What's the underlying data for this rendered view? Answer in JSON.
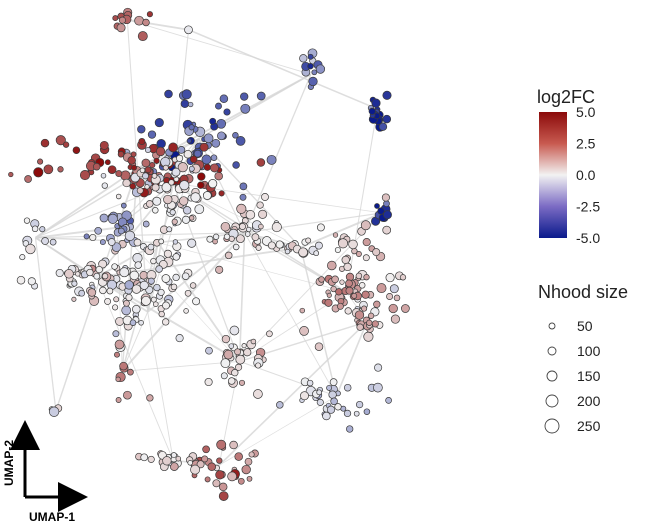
{
  "chart_data": {
    "type": "scatter",
    "title": "",
    "xlabel": "UMAP-1",
    "ylabel": "UMAP-2",
    "color_legend": {
      "title": "log2FC",
      "ticks": [
        "5.0",
        "2.5",
        "0.0",
        "-2.5",
        "-5.0"
      ],
      "range": [
        -5.0,
        5.0
      ],
      "colors": {
        "low": "#0a1a8c",
        "mid": "#f2f2f2",
        "high": "#8b0a0a"
      }
    },
    "size_legend": {
      "title": "Nhood size",
      "values": [
        50,
        100,
        150,
        200,
        250
      ]
    },
    "grid": false,
    "clusters": [
      {
        "x": 0.23,
        "y": 0.97,
        "n": 14,
        "spread": [
          0.02,
          0.012
        ],
        "log2fc": 3.0
      },
      {
        "x": 0.35,
        "y": 0.95,
        "n": 1,
        "spread": [
          0.0,
          0.0
        ],
        "log2fc": 0.0
      },
      {
        "x": 0.59,
        "y": 0.86,
        "n": 12,
        "spread": [
          0.01,
          0.02
        ],
        "log2fc": -3.0
      },
      {
        "x": 0.72,
        "y": 0.79,
        "n": 18,
        "spread": [
          0.01,
          0.015
        ],
        "log2fc": -4.8
      },
      {
        "x": 0.73,
        "y": 0.58,
        "n": 10,
        "spread": [
          0.008,
          0.012
        ],
        "log2fc": -4.5
      },
      {
        "x": 0.37,
        "y": 0.73,
        "n": 60,
        "spread": [
          0.05,
          0.05
        ],
        "log2fc": -3.0
      },
      {
        "x": 0.25,
        "y": 0.67,
        "n": 90,
        "spread": [
          0.08,
          0.03
        ],
        "log2fc": 4.0
      },
      {
        "x": 0.32,
        "y": 0.64,
        "n": 50,
        "spread": [
          0.04,
          0.04
        ],
        "log2fc": 0.0
      },
      {
        "x": 0.21,
        "y": 0.55,
        "n": 25,
        "spread": [
          0.025,
          0.02
        ],
        "log2fc": -2.0
      },
      {
        "x": 0.05,
        "y": 0.53,
        "n": 10,
        "spread": [
          0.02,
          0.015
        ],
        "log2fc": 0.0
      },
      {
        "x": 0.17,
        "y": 0.45,
        "n": 60,
        "spread": [
          0.06,
          0.02
        ],
        "log2fc": 0.3
      },
      {
        "x": 0.29,
        "y": 0.52,
        "n": 60,
        "spread": [
          0.05,
          0.06
        ],
        "log2fc": 0.0
      },
      {
        "x": 0.27,
        "y": 0.38,
        "n": 45,
        "spread": [
          0.035,
          0.035
        ],
        "log2fc": 0.0
      },
      {
        "x": 0.46,
        "y": 0.54,
        "n": 40,
        "spread": [
          0.05,
          0.025
        ],
        "log2fc": 0.4
      },
      {
        "x": 0.57,
        "y": 0.51,
        "n": 15,
        "spread": [
          0.03,
          0.01
        ],
        "log2fc": 0.0
      },
      {
        "x": 0.69,
        "y": 0.45,
        "n": 55,
        "spread": [
          0.04,
          0.06
        ],
        "log2fc": 0.8
      },
      {
        "x": 0.66,
        "y": 0.42,
        "n": 30,
        "spread": [
          0.035,
          0.018
        ],
        "log2fc": 1.8
      },
      {
        "x": 0.7,
        "y": 0.36,
        "n": 12,
        "spread": [
          0.01,
          0.012
        ],
        "log2fc": 1.5
      },
      {
        "x": 0.45,
        "y": 0.28,
        "n": 35,
        "spread": [
          0.03,
          0.022
        ],
        "log2fc": 0.5
      },
      {
        "x": 0.64,
        "y": 0.21,
        "n": 35,
        "spread": [
          0.035,
          0.03
        ],
        "log2fc": -0.8
      },
      {
        "x": 0.22,
        "y": 0.26,
        "n": 10,
        "spread": [
          0.015,
          0.025
        ],
        "log2fc": 2.0
      },
      {
        "x": 0.09,
        "y": 0.18,
        "n": 3,
        "spread": [
          0.005,
          0.005
        ],
        "log2fc": 0.0
      },
      {
        "x": 0.41,
        "y": 0.07,
        "n": 30,
        "spread": [
          0.03,
          0.025
        ],
        "log2fc": 2.2
      },
      {
        "x": 0.32,
        "y": 0.08,
        "n": 20,
        "spread": [
          0.035,
          0.012
        ],
        "log2fc": 0.5
      }
    ]
  }
}
